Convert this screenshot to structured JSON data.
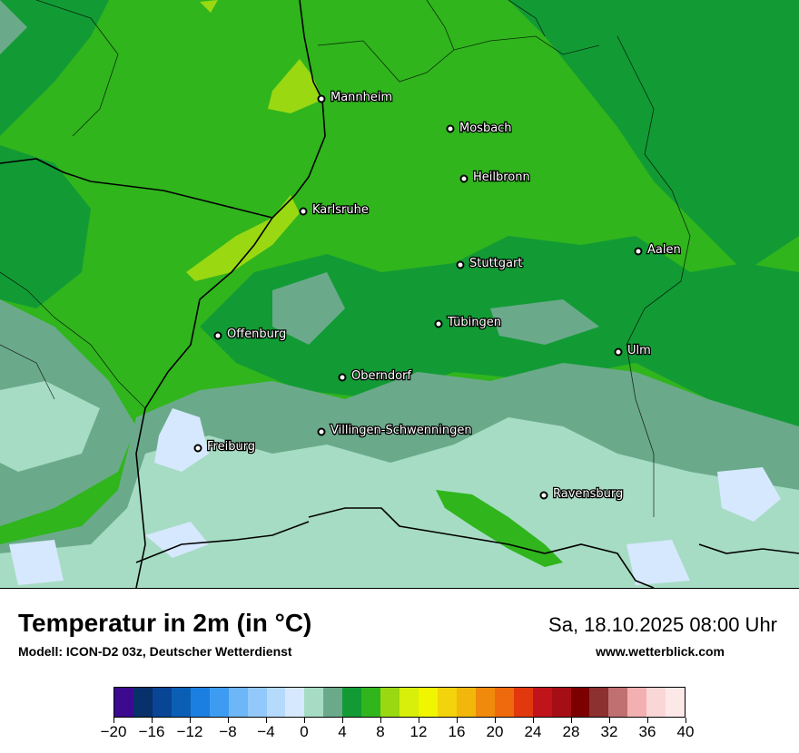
{
  "title": "Temperatur in 2m (in °C)",
  "model": "Modell: ICON-D2 03z, Deutscher Wetterdienst",
  "datetime": "Sa, 18.10.2025 08:00 Uhr",
  "website": "www.wetterblick.com",
  "cities": [
    {
      "name": "Mannheim"
    },
    {
      "name": "Mosbach"
    },
    {
      "name": "Heilbronn"
    },
    {
      "name": "Karlsruhe"
    },
    {
      "name": "Aalen"
    },
    {
      "name": "Stuttgart"
    },
    {
      "name": "Tübingen"
    },
    {
      "name": "Offenburg"
    },
    {
      "name": "Ulm"
    },
    {
      "name": "Oberndorf"
    },
    {
      "name": "Villingen-Schwenningen"
    },
    {
      "name": "Freiburg"
    },
    {
      "name": "Ravensburg"
    }
  ],
  "legend": {
    "min": -20,
    "max": 40,
    "step": 2,
    "tick_labels": [
      "−20",
      "−16",
      "−12",
      "−8",
      "−4",
      "0",
      "4",
      "8",
      "12",
      "16",
      "20",
      "24",
      "28",
      "32",
      "36",
      "40"
    ],
    "colors": [
      "#3b0a8f",
      "#08306b",
      "#084594",
      "#0a5fb4",
      "#1a7fe0",
      "#3d9cf2",
      "#6db6f7",
      "#93c9fa",
      "#b6dafc",
      "#d6e8fd",
      "#a6dcc4",
      "#6aaa8a",
      "#129b35",
      "#30b51d",
      "#9ad812",
      "#d7ef0a",
      "#f0f500",
      "#f3d30c",
      "#f2b70b",
      "#f08a0b",
      "#ee6a0c",
      "#e2380d",
      "#c0141a",
      "#a40e14",
      "#7c0000",
      "#8c3030",
      "#c07070",
      "#f2b0b0",
      "#fad6d6",
      "#fde8e8"
    ]
  }
}
